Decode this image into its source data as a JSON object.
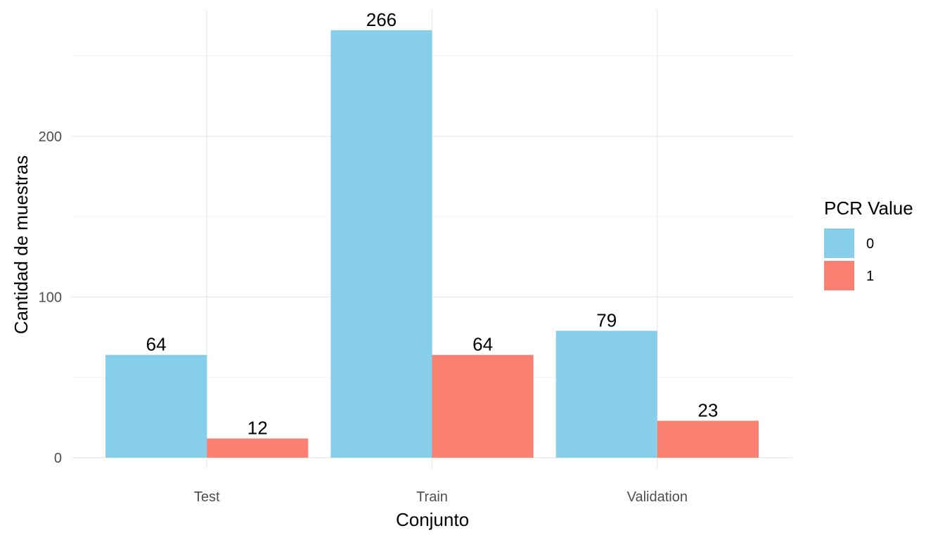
{
  "chart_data": {
    "type": "bar",
    "title": "",
    "xlabel": "Conjunto",
    "ylabel": "Cantidad de muestras",
    "categories": [
      "Test",
      "Train",
      "Validation"
    ],
    "series": [
      {
        "name": "0",
        "values": [
          64,
          266,
          79
        ],
        "color": "#87CEEB"
      },
      {
        "name": "1",
        "values": [
          12,
          64,
          23
        ],
        "color": "#FA8072"
      }
    ],
    "ylim": [
      0,
      266
    ],
    "yticks": [
      0,
      100,
      200
    ],
    "grid": true,
    "legend": {
      "title": "PCR Value",
      "position": "right"
    }
  }
}
